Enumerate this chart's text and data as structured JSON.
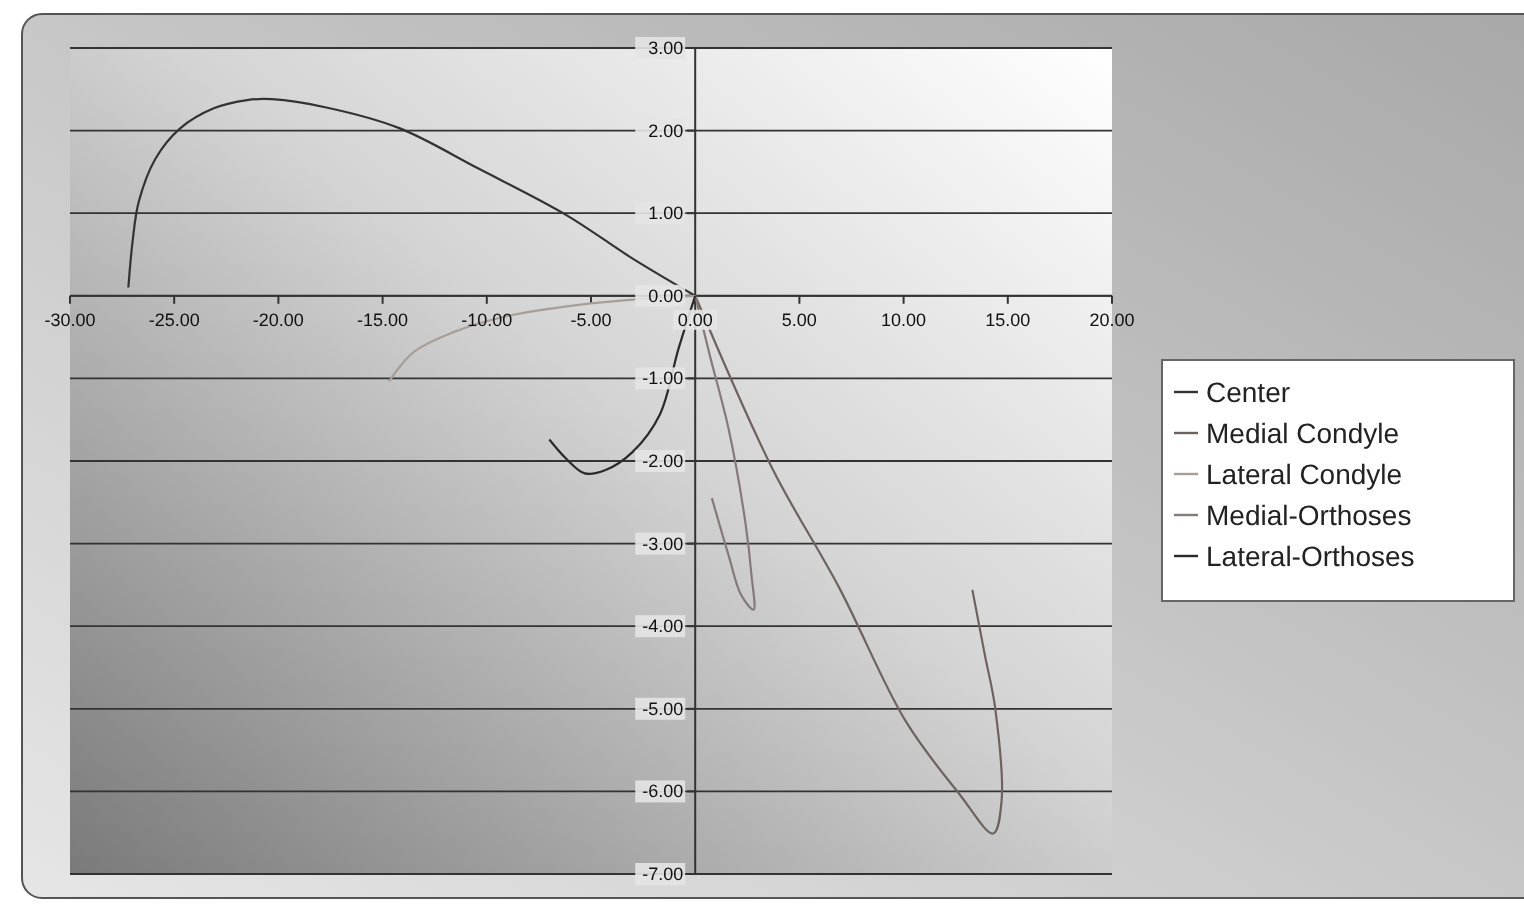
{
  "chart_data": {
    "type": "line",
    "xlim": [
      -30,
      20
    ],
    "ylim": [
      -7,
      3
    ],
    "xticks": [
      {
        "value": -30,
        "label": "-30.00"
      },
      {
        "value": -25,
        "label": "-25.00"
      },
      {
        "value": -20,
        "label": "-20.00"
      },
      {
        "value": -15,
        "label": "-15.00"
      },
      {
        "value": -10,
        "label": "-10.00"
      },
      {
        "value": -5,
        "label": "-5.00"
      },
      {
        "value": 0,
        "label": "0.00"
      },
      {
        "value": 5,
        "label": "5.00"
      },
      {
        "value": 10,
        "label": "10.00"
      },
      {
        "value": 15,
        "label": "15.00"
      },
      {
        "value": 20,
        "label": "20.00"
      }
    ],
    "yticks": [
      {
        "value": -7,
        "label": "-7.00"
      },
      {
        "value": -6,
        "label": "-6.00"
      },
      {
        "value": -5,
        "label": "-5.00"
      },
      {
        "value": -4,
        "label": "-4.00"
      },
      {
        "value": -3,
        "label": "-3.00"
      },
      {
        "value": -2,
        "label": "-2.00"
      },
      {
        "value": -1,
        "label": "-1.00"
      },
      {
        "value": 0,
        "label": "0.00"
      },
      {
        "value": 1,
        "label": "1.00"
      },
      {
        "value": 2,
        "label": "2.00"
      },
      {
        "value": 3,
        "label": "3.00"
      }
    ],
    "grid": "y",
    "legend": "right",
    "marker": "none",
    "line_style": "solid",
    "series": [
      {
        "name": "Center",
        "color": "#333333",
        "x": [
          -27.2,
          -27.0,
          -26.7,
          -25.9,
          -24.7,
          -23.1,
          -21.5,
          -20.3,
          -17.7,
          -14.2,
          -10.4,
          -6.2,
          -3.0,
          0
        ],
        "values": [
          0.1,
          0.65,
          1.14,
          1.66,
          2.03,
          2.27,
          2.37,
          2.38,
          2.28,
          2.03,
          1.54,
          0.98,
          0.45,
          0
        ]
      },
      {
        "name": "Medial Condyle",
        "color": "#6e6260",
        "x": [
          0,
          3.7,
          6.9,
          10.1,
          12.7,
          14.3,
          14.7,
          14.4,
          13.9,
          13.3
        ],
        "values": [
          0,
          -2.09,
          -3.53,
          -5.15,
          -6.04,
          -6.51,
          -6.12,
          -5.0,
          -4.35,
          -3.56
        ]
      },
      {
        "name": "Lateral Condyle",
        "color": "#a89e98",
        "x": [
          -14.7,
          -13.5,
          -11.6,
          -9.1,
          -5.6,
          -2.7,
          0
        ],
        "values": [
          -1.04,
          -0.68,
          -0.44,
          -0.25,
          -0.11,
          -0.04,
          0
        ]
      },
      {
        "name": "Medial-Orthoses",
        "color": "#85797a",
        "x": [
          0,
          0.7,
          1.6,
          2.4,
          2.7,
          2.8,
          2.2,
          1.6,
          0.8
        ],
        "values": [
          0,
          -0.72,
          -1.61,
          -2.73,
          -3.38,
          -3.8,
          -3.62,
          -3.14,
          -2.45
        ]
      },
      {
        "name": "Lateral-Orthoses",
        "color": "#2a2a2a",
        "x": [
          0,
          -0.8,
          -1.7,
          -3.0,
          -4.3,
          -5.3,
          -6.2,
          -7.0
        ],
        "values": [
          0,
          -0.64,
          -1.44,
          -1.89,
          -2.11,
          -2.15,
          -1.97,
          -1.74
        ]
      }
    ]
  }
}
